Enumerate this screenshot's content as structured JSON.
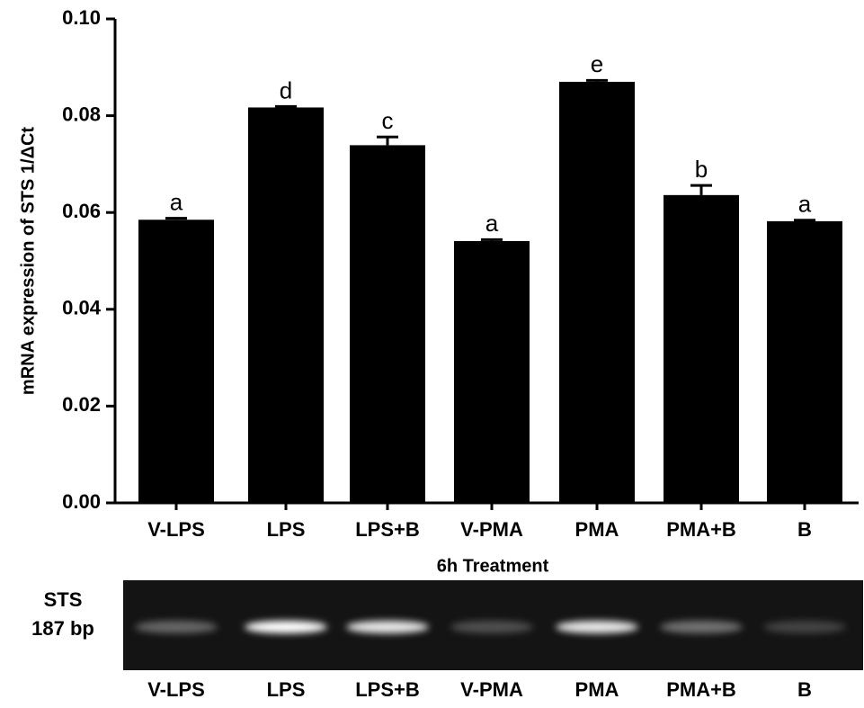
{
  "chart_data": {
    "type": "bar",
    "y_label": "mRNA expression of STS 1/ΔCt",
    "x_label": "6h Treatment",
    "categories": [
      "V-LPS",
      "LPS",
      "LPS+B",
      "V-PMA",
      "PMA",
      "PMA+B",
      "B"
    ],
    "values": [
      0.0585,
      0.0817,
      0.0739,
      0.0541,
      0.087,
      0.0636,
      0.0582
    ],
    "errors": [
      0.0003,
      0.0002,
      0.0017,
      0.0003,
      0.0003,
      0.002,
      0.0002
    ],
    "significance": [
      "a",
      "d",
      "c",
      "a",
      "e",
      "b",
      "a"
    ],
    "color": "#000000",
    "ylim": [
      0,
      0.1
    ],
    "yticks": [
      {
        "value": 0,
        "label": "0.00"
      },
      {
        "value": 0.02,
        "label": "0.02"
      },
      {
        "value": 0.04,
        "label": "0.04"
      },
      {
        "value": 0.06,
        "label": "0.06"
      },
      {
        "value": 0.08,
        "label": "0.08"
      },
      {
        "value": 0.1,
        "label": "0.10"
      }
    ]
  },
  "gel": {
    "labels": [
      "STS",
      "187 bp"
    ]
  }
}
